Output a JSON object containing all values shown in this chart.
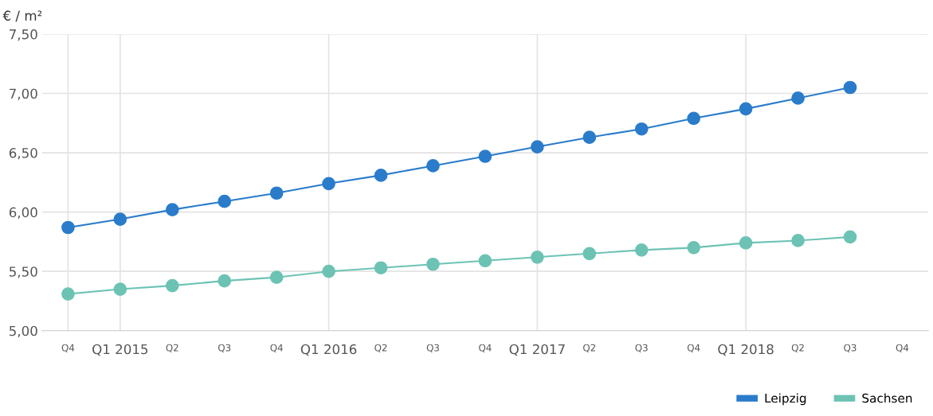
{
  "chart_data": {
    "type": "line",
    "ylabel": "€ / m²",
    "categories": [
      "Q4",
      "Q1 2015",
      "Q2",
      "Q3",
      "Q4",
      "Q1 2016",
      "Q2",
      "Q3",
      "Q4",
      "Q1 2017",
      "Q2",
      "Q3",
      "Q4",
      "Q1 2018",
      "Q2",
      "Q3",
      "Q4"
    ],
    "series": [
      {
        "name": "Leipzig",
        "color": "#2a7ccb",
        "values": [
          5.87,
          5.94,
          6.02,
          6.09,
          6.16,
          6.24,
          6.31,
          6.39,
          6.47,
          6.55,
          6.63,
          6.7,
          6.79,
          6.87,
          6.96,
          7.05,
          null
        ]
      },
      {
        "name": "Sachsen",
        "color": "#6cc3b4",
        "values": [
          5.31,
          5.35,
          5.38,
          5.42,
          5.45,
          5.5,
          5.53,
          5.56,
          5.59,
          5.62,
          5.65,
          5.68,
          5.7,
          5.74,
          5.76,
          5.79,
          null
        ]
      }
    ],
    "ylim": [
      5.0,
      7.5
    ],
    "yticks": [
      {
        "value": 5.0,
        "label": "5,00"
      },
      {
        "value": 5.5,
        "label": "5,50"
      },
      {
        "value": 6.0,
        "label": "6,00"
      },
      {
        "value": 6.5,
        "label": "6,50"
      },
      {
        "value": 7.0,
        "label": "7,00"
      },
      {
        "value": 7.5,
        "label": "7,50"
      }
    ],
    "grid": true,
    "legend": "bottom right",
    "marker": "circle",
    "line_style": "solid"
  }
}
